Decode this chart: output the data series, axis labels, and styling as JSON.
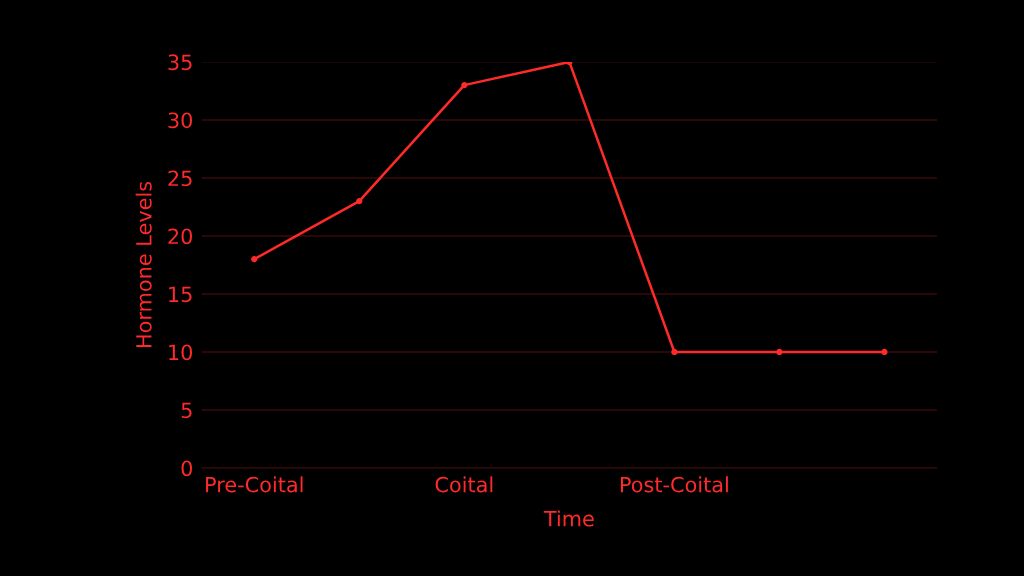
{
  "chart_data": {
    "type": "line",
    "xlabel": "Time",
    "ylabel": "Hormone Levels",
    "categories": [
      "Pre-Coital",
      null,
      "Coital",
      null,
      "Post-Coital",
      null,
      null
    ],
    "series": [
      {
        "color": "#ff2a2a",
        "values": [
          18,
          23,
          33,
          35,
          10,
          10,
          10
        ]
      }
    ],
    "ylim": [
      0,
      35
    ],
    "yticks": [
      0,
      5,
      10,
      15,
      20,
      25,
      30,
      35
    ],
    "grid": "y",
    "marker": "circle",
    "line_style": "solid"
  }
}
